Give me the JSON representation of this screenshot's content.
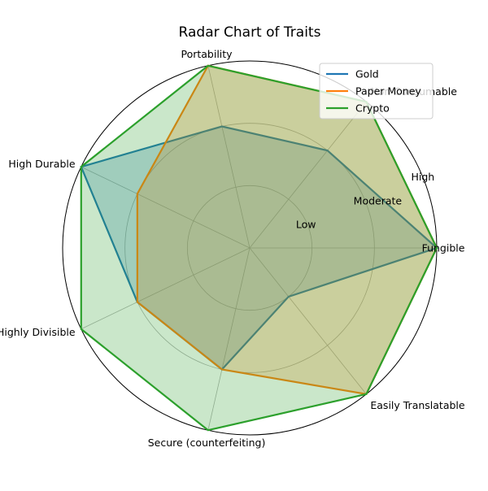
{
  "chart_data": {
    "type": "radar",
    "title": "Radar Chart of Traits",
    "axes": [
      "Fungible",
      "Non Consumable",
      "Portability",
      "High Durable",
      "Highly Divisible",
      "Secure (counterfeiting)",
      "Easily Translatable"
    ],
    "scale_min": 0,
    "scale_max": 3,
    "ring_labels": [
      {
        "value": 1,
        "label": "Low"
      },
      {
        "value": 2,
        "label": "Moderate"
      },
      {
        "value": 3,
        "label": "High"
      }
    ],
    "series": [
      {
        "name": "Gold",
        "color": "#1f77b4",
        "values": [
          3,
          2,
          2,
          3,
          2,
          2,
          1
        ]
      },
      {
        "name": "Paper Money",
        "color": "#ff7f0e",
        "values": [
          3,
          3,
          3,
          2,
          2,
          2,
          3
        ]
      },
      {
        "name": "Crypto",
        "color": "#2ca02c",
        "values": [
          3,
          3,
          3,
          3,
          3,
          3,
          3
        ]
      }
    ],
    "grid": true,
    "legend_position": "top-right"
  }
}
